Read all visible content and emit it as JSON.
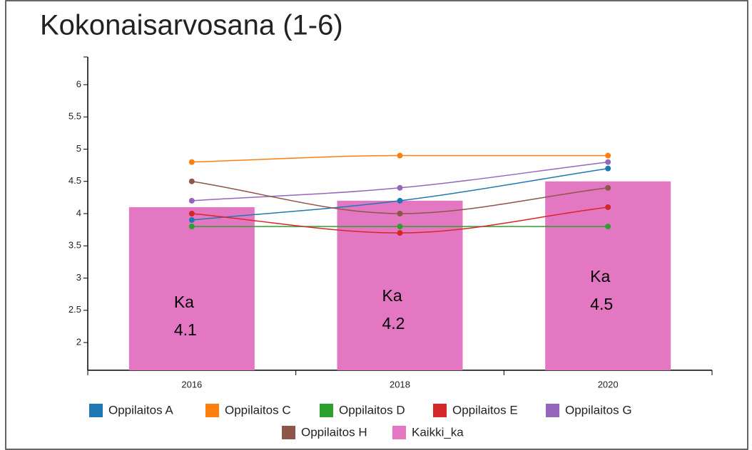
{
  "chart_data": {
    "type": "bar_line",
    "title": "Kokonaisarvosana (1-6)",
    "categories": [
      "2016",
      "2018",
      "2020"
    ],
    "bar_series": {
      "name": "Kaikki_ka",
      "color": "#e377c2",
      "values": [
        4.1,
        4.2,
        4.5
      ]
    },
    "bar_label": "Ka",
    "series": [
      {
        "name": "Oppilaitos A",
        "color": "#1f77b4",
        "values": [
          3.9,
          4.2,
          4.7
        ]
      },
      {
        "name": "Oppilaitos C",
        "color": "#ff7f0e",
        "values": [
          4.8,
          4.9,
          4.9
        ]
      },
      {
        "name": "Oppilaitos D",
        "color": "#2ca02c",
        "values": [
          3.8,
          3.8,
          3.8
        ]
      },
      {
        "name": "Oppilaitos E",
        "color": "#d62728",
        "values": [
          4.0,
          3.7,
          4.1
        ]
      },
      {
        "name": "Oppilaitos G",
        "color": "#9467bd",
        "values": [
          4.2,
          4.4,
          4.8
        ]
      },
      {
        "name": "Oppilaitos H",
        "color": "#8c564b",
        "values": [
          4.5,
          4.0,
          4.4
        ]
      }
    ],
    "ylim": [
      1.57,
      6.43
    ],
    "yticks": [
      2,
      2.5,
      3,
      3.5,
      4,
      4.5,
      5,
      5.5,
      6
    ]
  }
}
